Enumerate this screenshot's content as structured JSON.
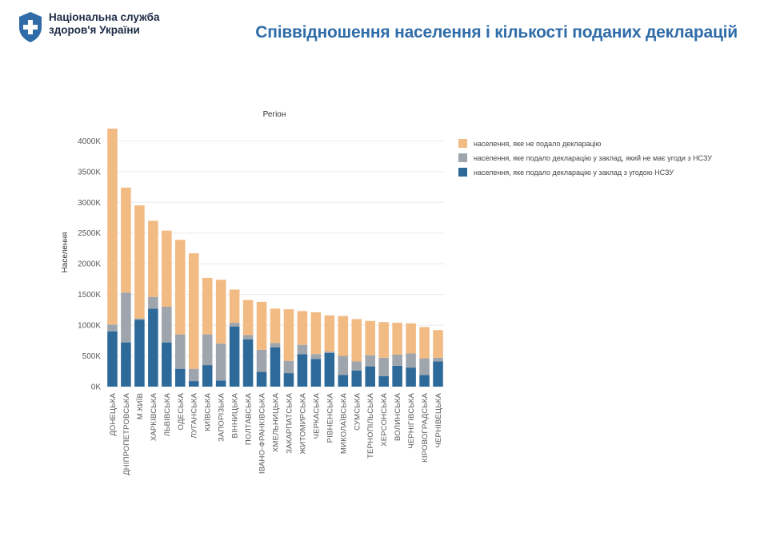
{
  "header": {
    "org_line1": "Національна служба",
    "org_line2": "здоров'я України",
    "title": "Співвідношення населення і кількості поданих декларацій"
  },
  "colors": {
    "brand": "#2f6ca8",
    "not_declared": "#f2bb84",
    "no_contract": "#9ea5ad",
    "with_contract": "#2e6a99"
  },
  "icons": {
    "logo": "shield-cross-icon"
  },
  "chart_data": {
    "type": "bar",
    "stacked": true,
    "title": "Регіон",
    "xlabel": "",
    "ylabel": "Населення",
    "ylim": [
      0,
      4200000
    ],
    "yticks": [
      0,
      500000,
      1000000,
      1500000,
      2000000,
      2500000,
      3000000,
      3500000,
      4000000
    ],
    "ytick_labels": [
      "0K",
      "500K",
      "1000K",
      "1500K",
      "2000K",
      "2500K",
      "3000K",
      "3500K",
      "4000K"
    ],
    "grid": true,
    "legend_position": "top-right",
    "categories": [
      "ДОНЕЦЬКА",
      "ДНІПРОПЕТРОВСЬКА",
      "М.КИЇВ",
      "ХАРКІВСЬКА",
      "ЛЬВІВСЬКА",
      "ОДЕСЬКА",
      "ЛУГАНСЬКА",
      "КИЇВСЬКА",
      "ЗАПОРІЗЬКА",
      "ВІННИЦЬКА",
      "ПОЛТАВСЬКА",
      "ІВАНО-ФРАНКІВСЬКА",
      "ХМЕЛЬНИЦЬКА",
      "ЗАКАРПАТСЬКА",
      "ЖИТОМИРСЬКА",
      "ЧЕРКАСЬКА",
      "РІВНЕНСЬКА",
      "МИКОЛАЇВСЬКА",
      "СУМСЬКА",
      "ТЕРНОПІЛЬСЬКА",
      "ХЕРСОНСЬКА",
      "ВОЛИНСЬКА",
      "ЧЕРНІГІВСЬКА",
      "КІРОВОГРАДСЬКА",
      "ЧЕРНІВЕЦЬКА"
    ],
    "series": [
      {
        "name": "населення, яке подало декларацію у заклад з угодою НСЗУ",
        "values": [
          900000,
          720000,
          1090000,
          1270000,
          720000,
          290000,
          90000,
          350000,
          100000,
          980000,
          770000,
          240000,
          640000,
          220000,
          530000,
          450000,
          550000,
          190000,
          260000,
          330000,
          170000,
          340000,
          310000,
          190000,
          410000
        ]
      },
      {
        "name": "населення, яке подало декларацію у заклад, який не має угоди з НСЗУ",
        "values": [
          110000,
          810000,
          20000,
          190000,
          580000,
          560000,
          200000,
          500000,
          600000,
          60000,
          70000,
          360000,
          70000,
          200000,
          150000,
          80000,
          20000,
          310000,
          150000,
          180000,
          300000,
          180000,
          230000,
          270000,
          60000
        ]
      },
      {
        "name": "населення, яке не подало декларацію",
        "values": [
          3190000,
          1710000,
          1840000,
          1240000,
          1240000,
          1540000,
          1880000,
          920000,
          1040000,
          540000,
          570000,
          780000,
          560000,
          840000,
          550000,
          680000,
          590000,
          650000,
          690000,
          560000,
          580000,
          520000,
          490000,
          510000,
          450000
        ]
      }
    ]
  }
}
